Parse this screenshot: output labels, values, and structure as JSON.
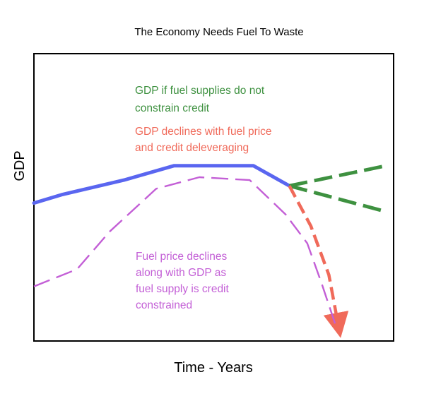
{
  "chart_data": {
    "type": "line",
    "title": "The Economy Needs Fuel To Waste",
    "xlabel": "Time - Years",
    "ylabel": "GDP",
    "x_ticks": "none",
    "y_ticks": "none",
    "grid": false,
    "legend": "none",
    "colors": {
      "gdp_history": "#5a66f0",
      "gdp_unconstrained": "#3e9140",
      "gdp_decline": "#f06a5a",
      "fuel_price": "#c35fd6",
      "frame": "#000000",
      "text": "#000000"
    },
    "series": [
      {
        "key": "gdp_history",
        "style": "solid",
        "points": [
          [
            0,
            48
          ],
          [
            8,
            51
          ],
          [
            25,
            56
          ],
          [
            39,
            61
          ],
          [
            61,
            61
          ],
          [
            71,
            54
          ]
        ]
      },
      {
        "key": "gdp_unconstrained_up",
        "style": "dashed",
        "points": [
          [
            71,
            54
          ],
          [
            98,
            61
          ]
        ]
      },
      {
        "key": "gdp_unconstrained_down",
        "style": "dashed",
        "points": [
          [
            71,
            54
          ],
          [
            98,
            45
          ]
        ]
      },
      {
        "key": "gdp_decline",
        "style": "dashed-arrow",
        "points": [
          [
            71,
            54
          ],
          [
            77,
            40
          ],
          [
            82,
            23
          ],
          [
            85,
            3
          ]
        ]
      },
      {
        "key": "fuel_price",
        "style": "dashed",
        "points": [
          [
            0,
            19
          ],
          [
            12,
            25
          ],
          [
            21,
            38
          ],
          [
            34,
            53
          ],
          [
            46,
            57
          ],
          [
            60,
            56
          ],
          [
            70,
            44
          ],
          [
            76,
            34
          ],
          [
            80,
            20
          ],
          [
            84,
            5
          ]
        ]
      }
    ],
    "annotations": [
      {
        "key": "green_note",
        "color": "#3e9140",
        "lines": [
          "GDP if fuel supplies do not",
          "constrain credit"
        ]
      },
      {
        "key": "red_note",
        "color": "#f06a5a",
        "lines": [
          "GDP declines with fuel price",
          "and credit deleveraging"
        ]
      },
      {
        "key": "purple_note",
        "color": "#c35fd6",
        "lines": [
          "Fuel price declines",
          "along with GDP as",
          "fuel supply is credit",
          "constrained"
        ]
      }
    ]
  }
}
